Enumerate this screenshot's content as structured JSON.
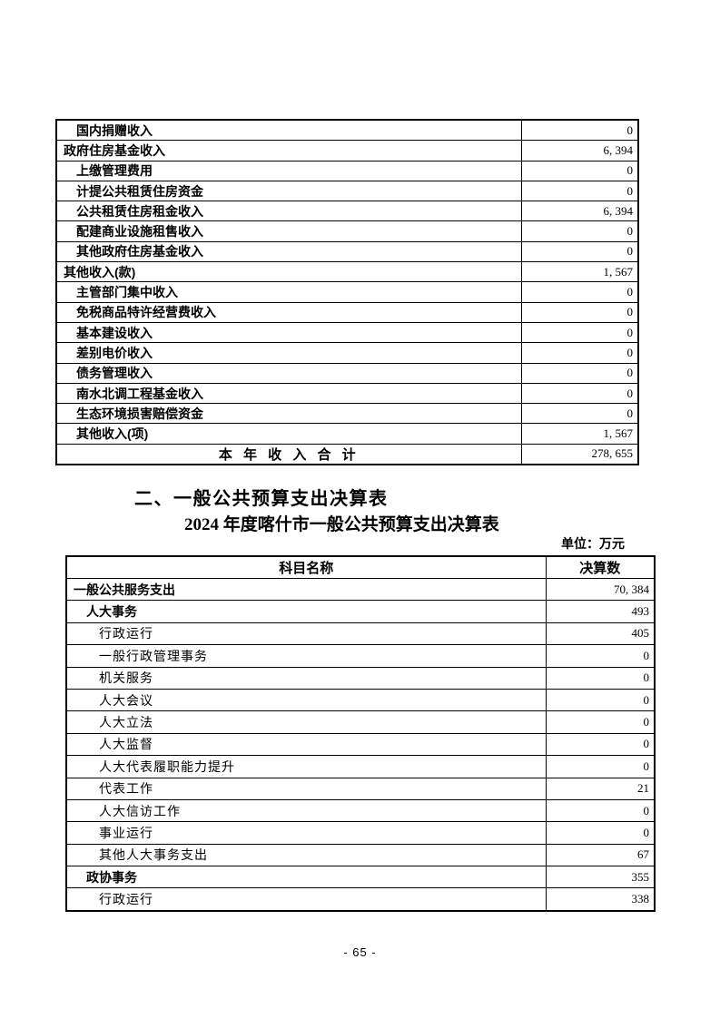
{
  "income_table": {
    "rows": [
      {
        "label": "国内捐赠收入",
        "value": "0",
        "level": 2,
        "bold": true
      },
      {
        "label": "政府住房基金收入",
        "value": "6, 394",
        "level": 1,
        "bold": true
      },
      {
        "label": "上缴管理费用",
        "value": "0",
        "level": 2,
        "bold": true
      },
      {
        "label": "计提公共租赁住房资金",
        "value": "0",
        "level": 2,
        "bold": true
      },
      {
        "label": "公共租赁住房租金收入",
        "value": "6, 394",
        "level": 2,
        "bold": true
      },
      {
        "label": "配建商业设施租售收入",
        "value": "0",
        "level": 2,
        "bold": true
      },
      {
        "label": "其他政府住房基金收入",
        "value": "0",
        "level": 2,
        "bold": true
      },
      {
        "label": "其他收入(款)",
        "value": "1, 567",
        "level": 1,
        "bold": true
      },
      {
        "label": "主管部门集中收入",
        "value": "0",
        "level": 2,
        "bold": true
      },
      {
        "label": "免税商品特许经营费收入",
        "value": "0",
        "level": 2,
        "bold": true
      },
      {
        "label": "基本建设收入",
        "value": "0",
        "level": 2,
        "bold": true
      },
      {
        "label": "差别电价收入",
        "value": "0",
        "level": 2,
        "bold": true
      },
      {
        "label": "债务管理收入",
        "value": "0",
        "level": 2,
        "bold": true
      },
      {
        "label": "南水北调工程基金收入",
        "value": "0",
        "level": 2,
        "bold": true
      },
      {
        "label": "生态环境损害赔偿资金",
        "value": "0",
        "level": 2,
        "bold": true
      },
      {
        "label": "其他收入(项)",
        "value": "1, 567",
        "level": 2,
        "bold": true
      },
      {
        "label": "本 年 收 入 合 计",
        "value": "278, 655",
        "level": "total",
        "bold": true
      }
    ]
  },
  "section": {
    "heading": "二、一般公共预算支出决算表",
    "subtitle": "2024 年度喀什市一般公共预算支出决算表",
    "unit_label": "单位：万元"
  },
  "expense_table": {
    "headers": {
      "subject": "科目名称",
      "amount": "决算数"
    },
    "rows": [
      {
        "label": "一般公共服务支出",
        "value": "70, 384",
        "level": 0,
        "bold": true
      },
      {
        "label": "人大事务",
        "value": "493",
        "level": 1,
        "bold": true
      },
      {
        "label": "行政运行",
        "value": "405",
        "level": 2,
        "bold": false
      },
      {
        "label": "一般行政管理事务",
        "value": "0",
        "level": 2,
        "bold": false
      },
      {
        "label": "机关服务",
        "value": "0",
        "level": 2,
        "bold": false
      },
      {
        "label": "人大会议",
        "value": "0",
        "level": 2,
        "bold": false
      },
      {
        "label": "人大立法",
        "value": "0",
        "level": 2,
        "bold": false
      },
      {
        "label": "人大监督",
        "value": "0",
        "level": 2,
        "bold": false
      },
      {
        "label": "人大代表履职能力提升",
        "value": "0",
        "level": 2,
        "bold": false
      },
      {
        "label": "代表工作",
        "value": "21",
        "level": 2,
        "bold": false
      },
      {
        "label": "人大信访工作",
        "value": "0",
        "level": 2,
        "bold": false
      },
      {
        "label": "事业运行",
        "value": "0",
        "level": 2,
        "bold": false
      },
      {
        "label": "其他人大事务支出",
        "value": "67",
        "level": 2,
        "bold": false
      },
      {
        "label": "政协事务",
        "value": "355",
        "level": 1,
        "bold": true
      },
      {
        "label": "行政运行",
        "value": "338",
        "level": 2,
        "bold": false
      }
    ]
  },
  "footer": {
    "page_number": "- 65 -"
  }
}
